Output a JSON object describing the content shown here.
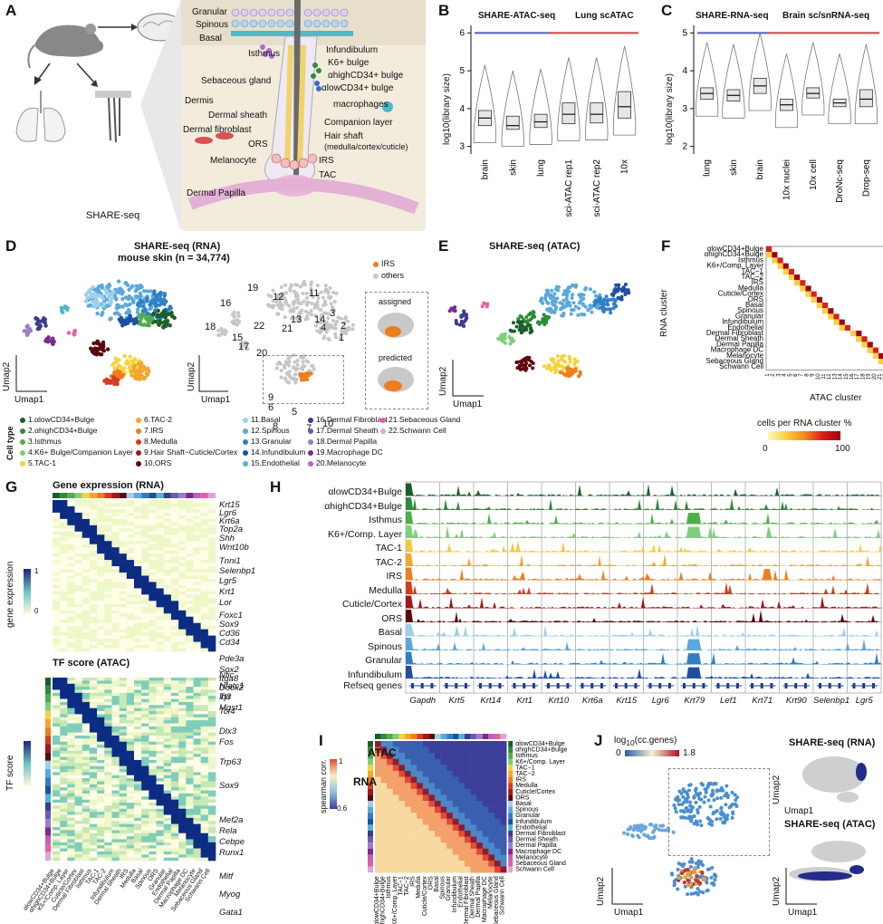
{
  "panels": {
    "A": "A",
    "B": "B",
    "C": "C",
    "D": "D",
    "E": "E",
    "F": "F",
    "G": "G",
    "H": "H",
    "I": "I",
    "J": "J"
  },
  "panelA": {
    "caption": "SHARE-seq",
    "labels": [
      "Granular",
      "Spinous",
      "Basal",
      "Isthmus",
      "Infundibulum",
      "K6+ bulge",
      "Sebaceous gland",
      "αhighCD34+ bulge",
      "αlowCD34+ bulge",
      "Dermis",
      "Dermal sheath",
      "macrophages",
      "ORS",
      "Companion layer",
      "Dermal fibroblast",
      "Hair shaft",
      "(medulla/cortex/cuticle)",
      "Melanocyte",
      "IRS",
      "TAC",
      "Dermal Papilla"
    ]
  },
  "chart_data": [
    {
      "id": "B",
      "type": "boxplot",
      "ylabel": "log10(library size)",
      "ylim": [
        2.8,
        6.2
      ],
      "yticks": [
        3,
        4,
        5,
        6
      ],
      "categories": [
        "brain",
        "skin",
        "lung",
        "sci-ATAC rep1",
        "sci-ATAC rep2",
        "10x"
      ],
      "median": [
        3.75,
        3.55,
        3.65,
        3.85,
        3.85,
        4.05
      ],
      "q1": [
        3.55,
        3.45,
        3.5,
        3.6,
        3.62,
        3.75
      ],
      "q3": [
        3.95,
        3.8,
        3.85,
        4.15,
        4.15,
        4.45
      ],
      "group_labels": [
        "SHARE-ATAC-seq",
        "Lung scATAC"
      ]
    },
    {
      "id": "C",
      "type": "boxplot",
      "ylabel": "log10(library size)",
      "ylim": [
        1.8,
        5.2
      ],
      "yticks": [
        2,
        3,
        4,
        5
      ],
      "categories": [
        "lung",
        "skin",
        "brain",
        "10x nuclei",
        "10x cell",
        "DroNc-seq",
        "Drop-seq"
      ],
      "median": [
        3.4,
        3.35,
        3.6,
        3.1,
        3.4,
        3.15,
        3.25
      ],
      "q1": [
        3.25,
        3.2,
        3.4,
        2.95,
        3.28,
        3.05,
        3.05
      ],
      "q3": [
        3.55,
        3.5,
        3.8,
        3.25,
        3.55,
        3.25,
        3.5
      ],
      "group_labels": [
        "SHARE-RNA-seq",
        "Brain sc/snRNA-seq"
      ]
    }
  ],
  "panelD": {
    "title": "SHARE-seq (RNA)",
    "subtitle": "mouse skin (n = 34,774)",
    "legend_irs": "IRS",
    "legend_others": "others",
    "assigned": "assigned",
    "predicted": "predicted",
    "umap1": "Umap1",
    "umap2": "Umap2",
    "cluster_numbers": [
      "19",
      "16",
      "18",
      "22",
      "15",
      "17",
      "20",
      "12",
      "11",
      "13",
      "14",
      "21",
      "3",
      "4",
      "2",
      "1",
      "9",
      "8",
      "6",
      "5",
      "7",
      "10"
    ],
    "cell_type_label": "Cell type",
    "legend": [
      {
        "label": "1.αlowCD34+Bulge",
        "color": "#1a5e2a"
      },
      {
        "label": "2.αhighCD34+Bulge",
        "color": "#2e8b3c"
      },
      {
        "label": "3.Isthmus",
        "color": "#4fae4a"
      },
      {
        "label": "4.K6+ Bulge/Companion Layer",
        "color": "#7fcf7a"
      },
      {
        "label": "5.TAC-1",
        "color": "#f6d33c"
      },
      {
        "label": "6.TAC-2",
        "color": "#f4a72a"
      },
      {
        "label": "7.IRS",
        "color": "#ef7d1e"
      },
      {
        "label": "8.Medulla",
        "color": "#d63c1a"
      },
      {
        "label": "9.Hair Shaft−Cuticle/Cortex",
        "color": "#a3161a"
      },
      {
        "label": "10.ORS",
        "color": "#5a0a0e"
      },
      {
        "label": "11.Basal",
        "color": "#9ed0ea"
      },
      {
        "label": "12.Spinous",
        "color": "#5aa8dc"
      },
      {
        "label": "13.Granular",
        "color": "#2e7fc6"
      },
      {
        "label": "14.Infundibulum",
        "color": "#1f4fa3"
      },
      {
        "label": "15.Endothelial",
        "color": "#4fb8c9"
      },
      {
        "label": "16.Dermal Fibroblast",
        "color": "#3b3c8f"
      },
      {
        "label": "17.Dermal Sheath",
        "color": "#6e5cb3"
      },
      {
        "label": "18.Dermal Papilla",
        "color": "#9b7ec9"
      },
      {
        "label": "19.Macrophage DC",
        "color": "#7b2a8f"
      },
      {
        "label": "20.Melanocyte",
        "color": "#c060b8"
      },
      {
        "label": "21.Sebaceous Gland",
        "color": "#e75fa5"
      },
      {
        "label": "22.Schwann Cell",
        "color": "#d8a8d8"
      }
    ]
  },
  "panelE": {
    "title": "SHARE-seq (ATAC)",
    "umap1": "Umap1",
    "umap2": "Umap2"
  },
  "panelF": {
    "ylabel": "RNA cluster",
    "xlabel": "ATAC cluster",
    "rows": [
      "αlowCD34+Bulge",
      "αhighCD34+Bulge",
      "Isthmus",
      "K6+/Comp. Layer",
      "TAC−1",
      "TAC−2",
      "IRS",
      "Medulla",
      "Cuticle/Cortex",
      "ORS",
      "Basal",
      "Spinous",
      "Granular",
      "Infundibulum",
      "Endothelial",
      "Dermal Fibroblast",
      "Dermal Sheath",
      "Dermal Papilla",
      "Macrophage DC",
      "Melanocyte",
      "Sebaceous Gland",
      "Schwann Cell"
    ],
    "colorbar_title": "cells per RNA cluster %",
    "cb_min": "0",
    "cb_max": "100"
  },
  "panelG": {
    "title_rna": "Gene expression (RNA)",
    "title_tf": "TF score (ATAC)",
    "cb_rna": "gene expression",
    "cb_tf": "TF score",
    "cb_min": "0",
    "cb_max": "1",
    "genes": [
      "Krt15",
      "Lgr6",
      "Krt6a",
      "Top2a",
      "Shh",
      "Wnt10b",
      "Tnni1",
      "Selenbp1",
      "Lgr5",
      "Krt1",
      "Lor",
      "Foxc1",
      "Sox9",
      "Cd36",
      "Cd34",
      "Pde3a",
      "Sox2",
      "Itga8",
      "Dock2",
      "Tyr",
      "Mgst1"
    ],
    "tfs": [
      "Nfic",
      "Nfatc1",
      "Id3",
      "Tcf4",
      "Dlx3",
      "Fos",
      "Trp63",
      "Sox9",
      "Mef2a",
      "Rela",
      "Cebpe",
      "Runx1",
      "Mitf",
      "Myog",
      "Gata1"
    ],
    "xlabels": [
      "αlowCD34+Bulge",
      "αhighCD34+Bulge",
      "K6+/Comp. Layer",
      "Cuticle/Cortex",
      "Dermal Fibroblast",
      "Isthmus",
      "TAC-1",
      "TAC-2",
      "Infundibulum",
      "Dermal Sheath",
      "IRS",
      "Medulla",
      "Basal",
      "Spinous",
      "ORS",
      "Granular",
      "Endothelial",
      "Dermal Papilla",
      "Macrophage DC",
      "Melanocyte",
      "Sebaceous Gland",
      "Schwann Cell"
    ]
  },
  "panelH": {
    "tracks": [
      "αlowCD34+Bulge",
      "αhighCD34+Bulge",
      "Isthmus",
      "K6+/Comp. Layer",
      "TAC-1",
      "TAC-2",
      "IRS",
      "Medulla",
      "Cuticle/Cortex",
      "ORS",
      "Basal",
      "Spinous",
      "Granular",
      "Infundibulum"
    ],
    "refseq": "Refseq genes",
    "genes": [
      "Gapdh",
      "Krt5",
      "Krt14",
      "Krt1",
      "Krt10",
      "Krt6a",
      "Krt15",
      "Lgr6",
      "Krt79",
      "Lef1",
      "Krt71",
      "Krt90",
      "Selenbp1",
      "Lgr5"
    ],
    "colors": [
      "#1a5e2a",
      "#2e8b3c",
      "#4fae4a",
      "#7fcf7a",
      "#f6c73c",
      "#f4a72a",
      "#ef7d1e",
      "#d63c1a",
      "#a3161a",
      "#5a0a0e",
      "#9ed0ea",
      "#5aa8dc",
      "#2e7fc6",
      "#1f4fa3"
    ]
  },
  "panelI": {
    "atac": "ATAC",
    "rna": "RNA",
    "cb_title": "spearman corr.",
    "cb_min": "0.6",
    "cb_max": "1",
    "rows": [
      "αlowCD34+Bulge",
      "αhighCD34+Bulge",
      "Isthmus",
      "K6+/Comp. Layer",
      "TAC−1",
      "TAC−2",
      "IRS",
      "Medulla",
      "Cuticle/Cortex",
      "ORS",
      "Basal",
      "Spinous",
      "Granular",
      "Infundibulum",
      "Endothelial",
      "Dermal Fibroblast",
      "Dermal Sheath",
      "Dermal Papilla",
      "Macrophage DC",
      "Melanocyte",
      "Sebaceous Gland",
      "Schwann Cell"
    ]
  },
  "panelJ": {
    "title": "log10(cc.genes)",
    "cb_min": "0",
    "cb_max": "1.8",
    "rna": "SHARE-seq (RNA)",
    "atac": "SHARE-seq (ATAC)",
    "umap1": "Umap1",
    "umap2": "Umap2"
  }
}
